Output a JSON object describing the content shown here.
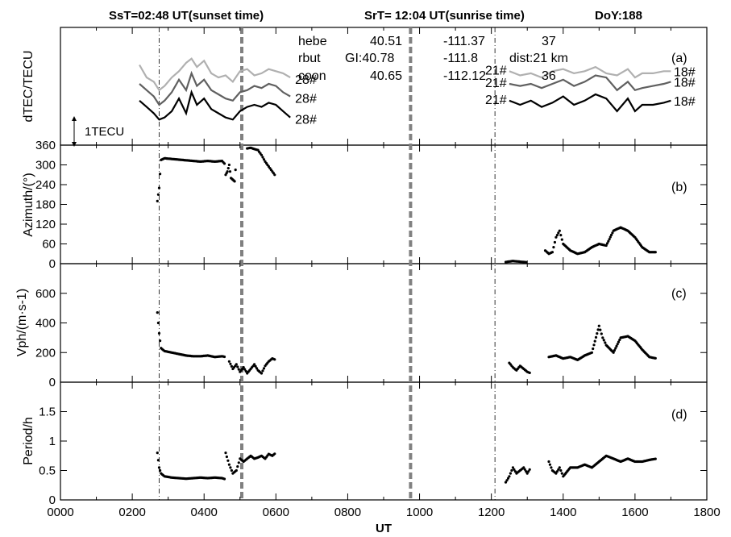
{
  "header": {
    "sunset": "SsT=02:48 UT(sunset time)",
    "sunrise": "SrT= 12:04 UT(sunrise time)",
    "doy": "DoY:188"
  },
  "stations": {
    "row1": [
      "hebe",
      "40.51",
      "-111.37",
      "37"
    ],
    "row2": [
      "rbut",
      "GI:40.78",
      "-111.8",
      "dist:21 km"
    ],
    "row3": [
      "coon",
      "40.65",
      "-112.12",
      "36"
    ]
  },
  "chart_data": [
    {
      "id": "a",
      "type": "line",
      "panel_label": "(a)",
      "ylabel": "dTEC/TECU",
      "scale_label": "1TECU",
      "xlim": [
        0,
        1800
      ],
      "series": [
        {
          "name": "28#",
          "color": "#b0b0b0",
          "x": [
            220,
            240,
            260,
            275,
            290,
            310,
            330,
            350,
            365,
            380,
            400,
            420,
            440,
            460,
            480,
            500,
            520,
            540,
            560,
            580,
            600,
            620,
            640
          ],
          "y": [
            4.2,
            3.6,
            3.4,
            3.0,
            3.2,
            3.6,
            3.9,
            4.3,
            4.5,
            4.1,
            4.4,
            3.8,
            3.6,
            3.7,
            3.4,
            3.9,
            4.0,
            3.7,
            3.8,
            4.0,
            3.9,
            3.8,
            3.6
          ]
        },
        {
          "name": "28#",
          "color": "#606060",
          "x": [
            220,
            240,
            260,
            275,
            290,
            310,
            330,
            350,
            365,
            380,
            400,
            420,
            440,
            460,
            480,
            500,
            520,
            540,
            560,
            580,
            600,
            620,
            640
          ],
          "y": [
            3.3,
            3.0,
            2.7,
            2.3,
            2.5,
            2.9,
            3.5,
            3.0,
            3.8,
            3.2,
            3.5,
            3.0,
            2.8,
            2.6,
            2.5,
            2.9,
            3.0,
            3.2,
            3.1,
            3.3,
            3.2,
            2.9,
            2.7
          ]
        },
        {
          "name": "28#",
          "color": "#000000",
          "x": [
            220,
            240,
            260,
            275,
            290,
            310,
            330,
            350,
            365,
            380,
            400,
            420,
            440,
            460,
            480,
            500,
            520,
            540,
            560,
            580,
            600,
            620,
            640
          ],
          "y": [
            2.5,
            2.2,
            1.9,
            1.6,
            1.7,
            2.0,
            2.6,
            1.9,
            2.9,
            2.3,
            2.6,
            2.1,
            1.9,
            1.7,
            1.6,
            2.0,
            2.2,
            2.3,
            2.2,
            2.4,
            2.3,
            2.0,
            1.7
          ]
        },
        {
          "name": "21#",
          "color": "#b0b0b0",
          "x": [
            1250,
            1280,
            1310,
            1340,
            1370,
            1400,
            1430,
            1460,
            1490,
            1520,
            1550,
            1580,
            1600,
            1620,
            1650,
            1680,
            1700
          ],
          "y": [
            3.9,
            3.7,
            3.8,
            3.6,
            3.9,
            4.0,
            3.8,
            3.9,
            4.1,
            3.8,
            3.7,
            4.0,
            3.6,
            3.8,
            3.8,
            3.9,
            3.9
          ]
        },
        {
          "name": "21#",
          "color": "#606060",
          "x": [
            1250,
            1280,
            1310,
            1340,
            1370,
            1400,
            1430,
            1460,
            1490,
            1520,
            1550,
            1580,
            1600,
            1620,
            1650,
            1680,
            1700
          ],
          "y": [
            3.3,
            3.2,
            3.3,
            3.1,
            3.3,
            3.5,
            3.2,
            3.4,
            3.7,
            3.6,
            3.0,
            3.4,
            3.0,
            3.1,
            3.2,
            3.3,
            3.4
          ]
        },
        {
          "name": "21#",
          "color": "#000000",
          "x": [
            1250,
            1280,
            1310,
            1340,
            1370,
            1400,
            1430,
            1460,
            1490,
            1520,
            1550,
            1580,
            1600,
            1620,
            1650,
            1680,
            1700
          ],
          "y": [
            2.5,
            2.3,
            2.5,
            2.2,
            2.4,
            2.7,
            2.3,
            2.5,
            2.8,
            2.6,
            2.0,
            2.6,
            2.0,
            2.3,
            2.3,
            2.4,
            2.5
          ]
        }
      ],
      "labels_right": [
        "18#",
        "18#",
        "18#"
      ]
    },
    {
      "id": "b",
      "type": "scatter",
      "panel_label": "(b)",
      "ylabel": "Azimuth/(°)",
      "xlim": [
        0,
        1800
      ],
      "ylim": [
        0,
        360
      ],
      "yticks": [
        0,
        60,
        120,
        180,
        240,
        300,
        360
      ],
      "segments": [
        {
          "x": [
            270,
            275,
            280,
            290,
            310,
            330,
            350,
            370,
            390,
            410,
            430,
            450,
            460
          ],
          "y": [
            190,
            230,
            315,
            320,
            318,
            316,
            314,
            312,
            310,
            312,
            310,
            312,
            300
          ]
        },
        {
          "x": [
            460,
            465,
            470,
            475,
            480,
            485,
            490
          ],
          "y": [
            270,
            280,
            300,
            260,
            255,
            250,
            320
          ]
        },
        {
          "x": [
            520,
            530,
            540,
            550,
            560,
            570,
            580,
            590,
            600
          ],
          "y": [
            350,
            352,
            348,
            345,
            330,
            310,
            295,
            280,
            265
          ]
        },
        {
          "x": [
            1240,
            1260,
            1280,
            1300
          ],
          "y": [
            5,
            8,
            6,
            4
          ]
        },
        {
          "x": [
            1350,
            1360,
            1370,
            1380,
            1390,
            1400,
            1420,
            1440,
            1460,
            1480,
            1500,
            1520,
            1540,
            1560,
            1580,
            1600,
            1620,
            1640,
            1660
          ],
          "y": [
            40,
            30,
            35,
            80,
            100,
            60,
            40,
            30,
            35,
            50,
            60,
            55,
            100,
            110,
            100,
            80,
            50,
            35,
            35
          ]
        }
      ]
    },
    {
      "id": "c",
      "type": "scatter",
      "panel_label": "(c)",
      "ylabel": "Vph/(m·s-1)",
      "xlim": [
        0,
        1800
      ],
      "ylim": [
        0,
        800
      ],
      "yticks": [
        0,
        200,
        400,
        600
      ],
      "segments": [
        {
          "x": [
            270,
            275,
            280,
            290,
            310,
            330,
            350,
            370,
            390,
            410,
            430,
            450,
            460
          ],
          "y": [
            470,
            330,
            230,
            210,
            200,
            190,
            180,
            175,
            175,
            180,
            170,
            175,
            170
          ]
        },
        {
          "x": [
            470,
            480,
            490,
            500,
            510,
            520,
            530,
            540,
            550,
            560,
            570,
            580,
            590,
            600
          ],
          "y": [
            140,
            90,
            120,
            70,
            100,
            60,
            90,
            120,
            80,
            60,
            110,
            140,
            160,
            150
          ]
        },
        {
          "x": [
            1250,
            1260,
            1270,
            1280,
            1290,
            1300,
            1310
          ],
          "y": [
            130,
            100,
            80,
            110,
            90,
            70,
            60
          ]
        },
        {
          "x": [
            1360,
            1380,
            1400,
            1420,
            1440,
            1460,
            1480,
            1500,
            1510,
            1520,
            1540,
            1560,
            1580,
            1600,
            1620,
            1640,
            1660
          ],
          "y": [
            170,
            180,
            160,
            170,
            150,
            180,
            200,
            380,
            300,
            250,
            200,
            300,
            310,
            280,
            220,
            170,
            160
          ]
        }
      ]
    },
    {
      "id": "d",
      "type": "scatter",
      "panel_label": "(d)",
      "ylabel": "Period/h",
      "xlabel": "UT",
      "xlim": [
        0,
        1800
      ],
      "ylim": [
        0,
        2
      ],
      "yticks": [
        0,
        0.5,
        1,
        1.5
      ],
      "xticks": [
        "0000",
        "0200",
        "0400",
        "0600",
        "0800",
        "1000",
        "1200",
        "1400",
        "1600",
        "1800"
      ],
      "segments": [
        {
          "x": [
            270,
            275,
            280,
            290,
            310,
            330,
            350,
            370,
            390,
            410,
            430,
            450,
            460
          ],
          "y": [
            0.8,
            0.55,
            0.45,
            0.4,
            0.38,
            0.37,
            0.36,
            0.37,
            0.38,
            0.37,
            0.38,
            0.37,
            0.35
          ]
        },
        {
          "x": [
            460,
            470,
            480,
            490,
            500,
            510,
            520,
            530,
            540,
            550,
            560,
            570,
            580,
            590,
            600
          ],
          "y": [
            0.8,
            0.6,
            0.45,
            0.5,
            0.7,
            0.65,
            0.7,
            0.75,
            0.7,
            0.72,
            0.75,
            0.7,
            0.78,
            0.75,
            0.8
          ]
        },
        {
          "x": [
            1240,
            1250,
            1260,
            1270,
            1280,
            1290,
            1300,
            1310
          ],
          "y": [
            0.3,
            0.4,
            0.55,
            0.45,
            0.5,
            0.55,
            0.45,
            0.55
          ]
        },
        {
          "x": [
            1360,
            1370,
            1380,
            1390,
            1400,
            1420,
            1440,
            1460,
            1480,
            1500,
            1520,
            1540,
            1560,
            1580,
            1600,
            1620,
            1640,
            1660
          ],
          "y": [
            0.65,
            0.5,
            0.45,
            0.55,
            0.4,
            0.55,
            0.55,
            0.6,
            0.55,
            0.65,
            0.75,
            0.7,
            0.65,
            0.7,
            0.65,
            0.65,
            0.68,
            0.7
          ]
        }
      ]
    }
  ],
  "vertical_lines": {
    "dashdot": [
      275,
      1210
    ],
    "dashed": [
      505,
      975
    ]
  }
}
